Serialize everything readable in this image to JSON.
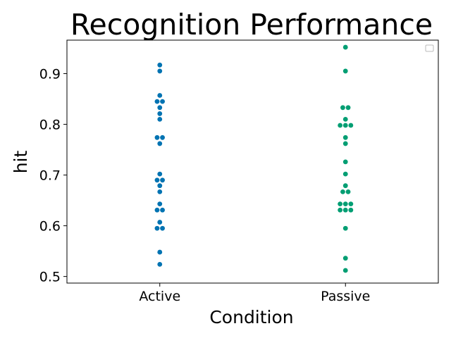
{
  "chart_data": {
    "type": "scatter",
    "subtype": "swarm",
    "title": "Recognition Performance",
    "xlabel": "Condition",
    "ylabel": "hit",
    "categories": [
      "Active",
      "Passive"
    ],
    "yticks": [
      0.5,
      0.6,
      0.7,
      0.8,
      0.9
    ],
    "ylim": [
      0.487,
      0.966
    ],
    "grid": false,
    "legend": {
      "position": "top-right",
      "entries": []
    },
    "series": [
      {
        "name": "Active",
        "color": "#0173b2",
        "values": [
          0.917,
          0.905,
          0.857,
          0.845,
          0.845,
          0.833,
          0.821,
          0.81,
          0.774,
          0.774,
          0.762,
          0.702,
          0.69,
          0.69,
          0.679,
          0.667,
          0.643,
          0.631,
          0.631,
          0.607,
          0.595,
          0.595,
          0.548,
          0.524
        ]
      },
      {
        "name": "Passive",
        "color": "#029e73",
        "values": [
          0.952,
          0.905,
          0.833,
          0.833,
          0.81,
          0.798,
          0.798,
          0.798,
          0.774,
          0.762,
          0.726,
          0.702,
          0.679,
          0.667,
          0.667,
          0.643,
          0.643,
          0.643,
          0.631,
          0.631,
          0.631,
          0.595,
          0.536,
          0.512
        ]
      }
    ]
  }
}
